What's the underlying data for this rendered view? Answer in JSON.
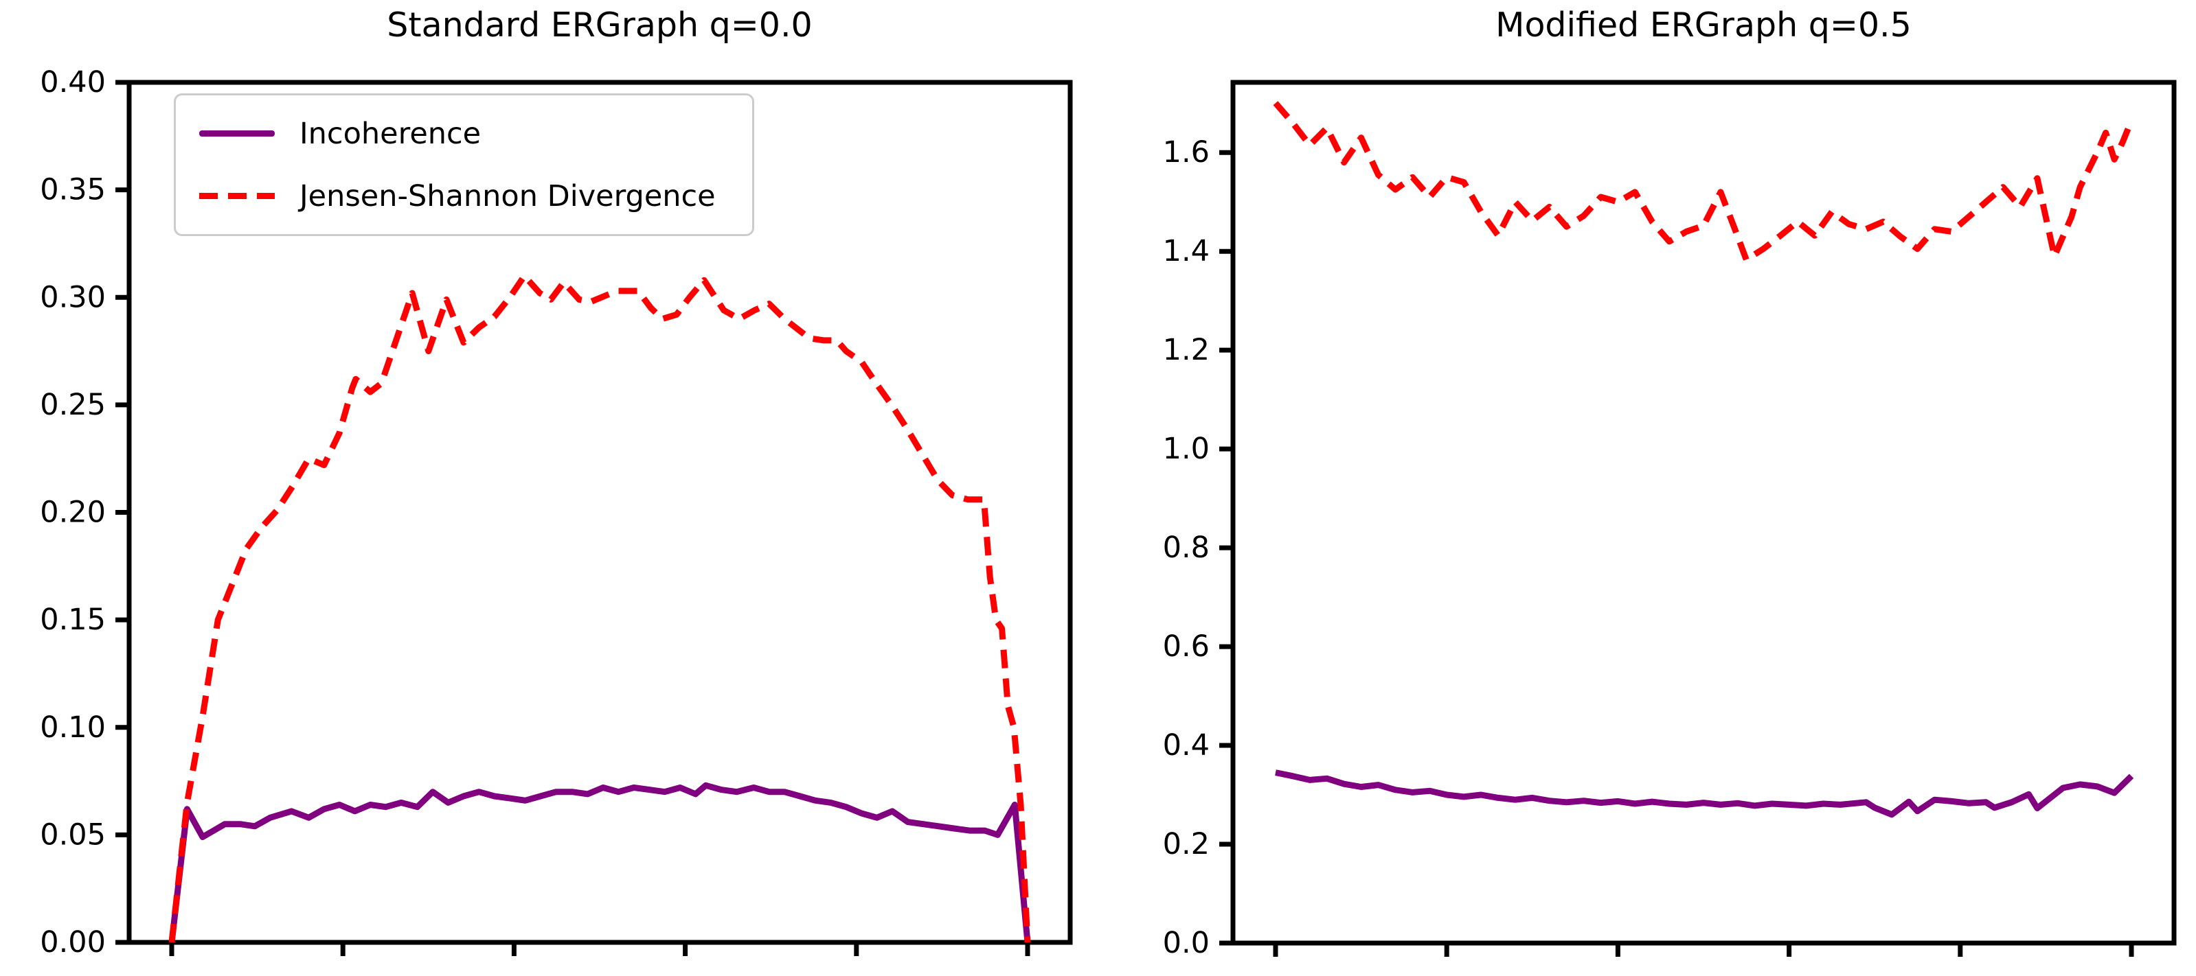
{
  "figure": {
    "background": "#ffffff",
    "text_color": "#000000",
    "spine_color": "#000000"
  },
  "chart_data": [
    {
      "type": "line",
      "title": "Standard ERGraph q=0.0",
      "xlabel": "",
      "ylabel": "",
      "ylim": [
        0,
        0.4
      ],
      "ytick_labels": [
        "0.00",
        "0.05",
        "0.10",
        "0.15",
        "0.20",
        "0.25",
        "0.30",
        "0.35",
        "0.40"
      ],
      "xticks_count": 6,
      "xtick_labels_visible": false,
      "grid": false,
      "legend": {
        "position": "upper left",
        "entries": [
          {
            "label": "Incoherence",
            "color": "#800080",
            "style": "solid"
          },
          {
            "label": "Jensen-Shannon Divergence",
            "color": "#ff0000",
            "style": "dashed"
          }
        ]
      },
      "series": [
        {
          "name": "Incoherence",
          "color": "#800080",
          "style": "solid",
          "points": [
            [
              0.0,
              0.0
            ],
            [
              0.018,
              0.062
            ],
            [
              0.036,
              0.049
            ],
            [
              0.049,
              0.052
            ],
            [
              0.062,
              0.055
            ],
            [
              0.08,
              0.055
            ],
            [
              0.097,
              0.054
            ],
            [
              0.115,
              0.058
            ],
            [
              0.14,
              0.061
            ],
            [
              0.16,
              0.058
            ],
            [
              0.178,
              0.062
            ],
            [
              0.196,
              0.064
            ],
            [
              0.214,
              0.061
            ],
            [
              0.232,
              0.064
            ],
            [
              0.25,
              0.063
            ],
            [
              0.268,
              0.065
            ],
            [
              0.287,
              0.063
            ],
            [
              0.305,
              0.07
            ],
            [
              0.323,
              0.065
            ],
            [
              0.341,
              0.068
            ],
            [
              0.359,
              0.07
            ],
            [
              0.377,
              0.068
            ],
            [
              0.395,
              0.067
            ],
            [
              0.413,
              0.066
            ],
            [
              0.431,
              0.068
            ],
            [
              0.449,
              0.07
            ],
            [
              0.468,
              0.07
            ],
            [
              0.486,
              0.069
            ],
            [
              0.504,
              0.072
            ],
            [
              0.522,
              0.07
            ],
            [
              0.54,
              0.072
            ],
            [
              0.558,
              0.071
            ],
            [
              0.576,
              0.07
            ],
            [
              0.594,
              0.072
            ],
            [
              0.612,
              0.069
            ],
            [
              0.624,
              0.073
            ],
            [
              0.642,
              0.071
            ],
            [
              0.66,
              0.07
            ],
            [
              0.68,
              0.072
            ],
            [
              0.698,
              0.07
            ],
            [
              0.716,
              0.07
            ],
            [
              0.734,
              0.068
            ],
            [
              0.752,
              0.066
            ],
            [
              0.77,
              0.065
            ],
            [
              0.788,
              0.063
            ],
            [
              0.806,
              0.06
            ],
            [
              0.824,
              0.058
            ],
            [
              0.842,
              0.061
            ],
            [
              0.86,
              0.056
            ],
            [
              0.878,
              0.055
            ],
            [
              0.896,
              0.054
            ],
            [
              0.914,
              0.053
            ],
            [
              0.932,
              0.052
            ],
            [
              0.95,
              0.052
            ],
            [
              0.965,
              0.05
            ],
            [
              0.985,
              0.064
            ],
            [
              1.0,
              0.0
            ]
          ]
        },
        {
          "name": "Jensen-Shannon Divergence",
          "color": "#ff0000",
          "style": "dashed",
          "points": [
            [
              0.0,
              0.0
            ],
            [
              0.018,
              0.065
            ],
            [
              0.036,
              0.105
            ],
            [
              0.054,
              0.15
            ],
            [
              0.087,
              0.183
            ],
            [
              0.105,
              0.193
            ],
            [
              0.123,
              0.201
            ],
            [
              0.141,
              0.212
            ],
            [
              0.16,
              0.225
            ],
            [
              0.178,
              0.222
            ],
            [
              0.196,
              0.237
            ],
            [
              0.211,
              0.258
            ],
            [
              0.215,
              0.262
            ],
            [
              0.232,
              0.256
            ],
            [
              0.245,
              0.26
            ],
            [
              0.281,
              0.302
            ],
            [
              0.3,
              0.275
            ],
            [
              0.321,
              0.299
            ],
            [
              0.341,
              0.279
            ],
            [
              0.359,
              0.286
            ],
            [
              0.377,
              0.291
            ],
            [
              0.395,
              0.3
            ],
            [
              0.412,
              0.31
            ],
            [
              0.43,
              0.302
            ],
            [
              0.443,
              0.299
            ],
            [
              0.458,
              0.307
            ],
            [
              0.476,
              0.299
            ],
            [
              0.49,
              0.298
            ],
            [
              0.508,
              0.301
            ],
            [
              0.521,
              0.303
            ],
            [
              0.545,
              0.303
            ],
            [
              0.56,
              0.295
            ],
            [
              0.573,
              0.29
            ],
            [
              0.59,
              0.292
            ],
            [
              0.605,
              0.3
            ],
            [
              0.622,
              0.308
            ],
            [
              0.645,
              0.294
            ],
            [
              0.663,
              0.29
            ],
            [
              0.681,
              0.294
            ],
            [
              0.698,
              0.297
            ],
            [
              0.716,
              0.29
            ],
            [
              0.745,
              0.281
            ],
            [
              0.762,
              0.28
            ],
            [
              0.777,
              0.28
            ],
            [
              0.788,
              0.275
            ],
            [
              0.806,
              0.27
            ],
            [
              0.823,
              0.26
            ],
            [
              0.841,
              0.25
            ],
            [
              0.859,
              0.239
            ],
            [
              0.877,
              0.227
            ],
            [
              0.895,
              0.215
            ],
            [
              0.912,
              0.208
            ],
            [
              0.93,
              0.206
            ],
            [
              0.949,
              0.206
            ],
            [
              0.956,
              0.17
            ],
            [
              0.963,
              0.15
            ],
            [
              0.97,
              0.146
            ],
            [
              0.977,
              0.11
            ],
            [
              0.984,
              0.1
            ],
            [
              0.992,
              0.064
            ],
            [
              1.0,
              0.0
            ]
          ]
        }
      ]
    },
    {
      "type": "line",
      "title": "Modified ERGraph q=0.5",
      "xlabel": "",
      "ylabel": "",
      "ylim": [
        0,
        1.742
      ],
      "ytick_labels": [
        "0.0",
        "0.2",
        "0.4",
        "0.6",
        "0.8",
        "1.0",
        "1.2",
        "1.4",
        "1.6"
      ],
      "xticks_count": 6,
      "xtick_labels_visible": false,
      "grid": false,
      "legend": null,
      "series": [
        {
          "name": "Incoherence",
          "color": "#800080",
          "style": "solid",
          "points": [
            [
              0.0,
              0.345
            ],
            [
              0.02,
              0.338
            ],
            [
              0.04,
              0.33
            ],
            [
              0.06,
              0.333
            ],
            [
              0.08,
              0.322
            ],
            [
              0.1,
              0.316
            ],
            [
              0.12,
              0.32
            ],
            [
              0.14,
              0.31
            ],
            [
              0.16,
              0.305
            ],
            [
              0.18,
              0.308
            ],
            [
              0.2,
              0.3
            ],
            [
              0.22,
              0.296
            ],
            [
              0.24,
              0.3
            ],
            [
              0.26,
              0.294
            ],
            [
              0.28,
              0.29
            ],
            [
              0.3,
              0.294
            ],
            [
              0.32,
              0.288
            ],
            [
              0.34,
              0.285
            ],
            [
              0.36,
              0.288
            ],
            [
              0.38,
              0.284
            ],
            [
              0.4,
              0.287
            ],
            [
              0.42,
              0.282
            ],
            [
              0.44,
              0.286
            ],
            [
              0.46,
              0.282
            ],
            [
              0.48,
              0.28
            ],
            [
              0.5,
              0.284
            ],
            [
              0.52,
              0.28
            ],
            [
              0.54,
              0.283
            ],
            [
              0.56,
              0.278
            ],
            [
              0.58,
              0.282
            ],
            [
              0.6,
              0.28
            ],
            [
              0.62,
              0.278
            ],
            [
              0.64,
              0.282
            ],
            [
              0.66,
              0.28
            ],
            [
              0.69,
              0.285
            ],
            [
              0.7,
              0.274
            ],
            [
              0.72,
              0.26
            ],
            [
              0.74,
              0.286
            ],
            [
              0.75,
              0.267
            ],
            [
              0.77,
              0.29
            ],
            [
              0.79,
              0.287
            ],
            [
              0.81,
              0.283
            ],
            [
              0.83,
              0.285
            ],
            [
              0.84,
              0.274
            ],
            [
              0.86,
              0.285
            ],
            [
              0.88,
              0.301
            ],
            [
              0.89,
              0.273
            ],
            [
              0.92,
              0.314
            ],
            [
              0.94,
              0.321
            ],
            [
              0.96,
              0.317
            ],
            [
              0.98,
              0.304
            ],
            [
              1.0,
              0.338
            ]
          ]
        },
        {
          "name": "Jensen-Shannon Divergence",
          "color": "#ff0000",
          "style": "dashed",
          "points": [
            [
              0.0,
              1.7
            ],
            [
              0.02,
              1.66
            ],
            [
              0.04,
              1.615
            ],
            [
              0.06,
              1.65
            ],
            [
              0.08,
              1.58
            ],
            [
              0.1,
              1.63
            ],
            [
              0.12,
              1.555
            ],
            [
              0.14,
              1.525
            ],
            [
              0.16,
              1.55
            ],
            [
              0.18,
              1.51
            ],
            [
              0.2,
              1.55
            ],
            [
              0.22,
              1.54
            ],
            [
              0.24,
              1.48
            ],
            [
              0.26,
              1.432
            ],
            [
              0.28,
              1.5
            ],
            [
              0.3,
              1.462
            ],
            [
              0.32,
              1.49
            ],
            [
              0.34,
              1.45
            ],
            [
              0.36,
              1.472
            ],
            [
              0.38,
              1.51
            ],
            [
              0.4,
              1.5
            ],
            [
              0.42,
              1.52
            ],
            [
              0.44,
              1.46
            ],
            [
              0.46,
              1.42
            ],
            [
              0.48,
              1.44
            ],
            [
              0.5,
              1.452
            ],
            [
              0.52,
              1.52
            ],
            [
              0.54,
              1.43
            ],
            [
              0.55,
              1.383
            ],
            [
              0.57,
              1.405
            ],
            [
              0.59,
              1.432
            ],
            [
              0.61,
              1.46
            ],
            [
              0.63,
              1.432
            ],
            [
              0.65,
              1.48
            ],
            [
              0.67,
              1.455
            ],
            [
              0.69,
              1.445
            ],
            [
              0.71,
              1.46
            ],
            [
              0.73,
              1.43
            ],
            [
              0.75,
              1.405
            ],
            [
              0.77,
              1.445
            ],
            [
              0.79,
              1.44
            ],
            [
              0.81,
              1.47
            ],
            [
              0.83,
              1.5
            ],
            [
              0.85,
              1.53
            ],
            [
              0.87,
              1.49
            ],
            [
              0.89,
              1.548
            ],
            [
              0.91,
              1.39
            ],
            [
              0.93,
              1.47
            ],
            [
              0.94,
              1.53
            ],
            [
              0.96,
              1.6
            ],
            [
              0.97,
              1.64
            ],
            [
              0.98,
              1.586
            ],
            [
              0.99,
              1.622
            ],
            [
              1.0,
              1.665
            ]
          ]
        }
      ]
    }
  ]
}
